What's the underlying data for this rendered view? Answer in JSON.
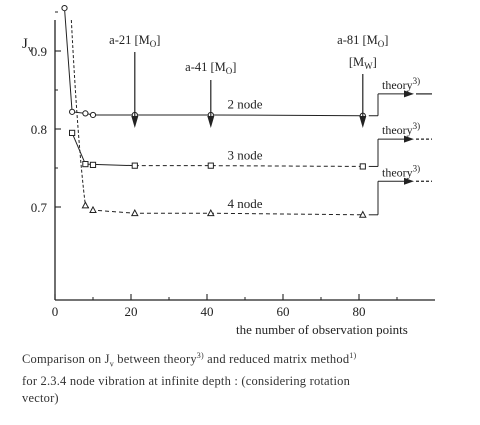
{
  "chart_data": {
    "type": "line",
    "ylabel": "J",
    "ylabel_sub": "v",
    "xlabel": "the number of observation points",
    "xlim": [
      0,
      100
    ],
    "ylim": [
      0.65,
      1.0
    ],
    "xticks": [
      0,
      20,
      40,
      60,
      80
    ],
    "yticks": [
      0.7,
      0.8,
      0.9
    ],
    "grid": false,
    "series": [
      {
        "name": "2 node",
        "marker": "circle",
        "line": "solid",
        "x": [
          2.5,
          4.5,
          8,
          10,
          21,
          41,
          81
        ],
        "y": [
          0.955,
          0.822,
          0.82,
          0.818,
          0.818,
          0.818,
          0.817
        ],
        "theory": 0.845
      },
      {
        "name": "3 node",
        "marker": "square",
        "line": "dashed-to-solid",
        "x": [
          4.5,
          8,
          10,
          21,
          41,
          81
        ],
        "y": [
          0.795,
          0.755,
          0.754,
          0.753,
          0.753,
          0.752
        ],
        "theory": 0.787
      },
      {
        "name": "4 node",
        "marker": "triangle",
        "line": "dashed",
        "x": [
          8,
          10,
          21,
          41,
          81
        ],
        "y": [
          0.702,
          0.696,
          0.692,
          0.692,
          0.69
        ],
        "theory": 0.733
      }
    ],
    "arrow_annotations": [
      {
        "x": 21,
        "parts": [
          "a-21 [M",
          "O",
          "]"
        ]
      },
      {
        "x": 41,
        "parts": [
          "a-41 [M",
          "O",
          "]"
        ]
      },
      {
        "x": 81,
        "parts": [
          "a-81 [M",
          "O",
          "]"
        ],
        "extra_parts": [
          "[M",
          "W",
          "]"
        ]
      }
    ],
    "theory_label": "theory",
    "theory_ref": "3)"
  },
  "caption": {
    "line1_pre": "Comparison on J",
    "line1_sub": "v",
    "line1_mid": " between theory",
    "line1_sup1": "3)",
    "line1_post": " and reduced matrix method",
    "line1_sup2": "1)",
    "line2": "for 2.3.4 node vibration at infinite depth : (considering rotation",
    "line3": "vector)"
  }
}
